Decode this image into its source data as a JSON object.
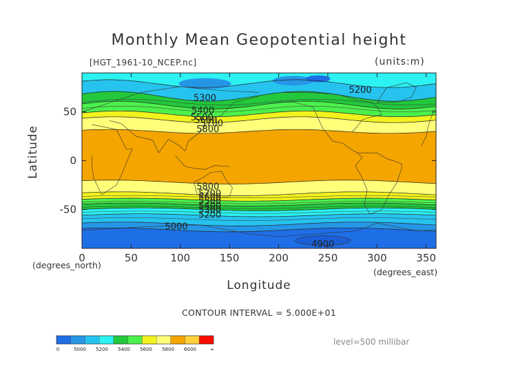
{
  "header": {
    "title": "Monthly Mean Geopotential height",
    "file_label": "[HGT_1961-10_NCEP.nc]",
    "units_label": "(units:m)"
  },
  "axes": {
    "ylabel": "Latitude",
    "xlabel": "Longitude",
    "y_units": "(degrees_north)",
    "x_units": "(degrees_east)"
  },
  "footer": {
    "contour_interval": "CONTOUR INTERVAL = 5.000E+01",
    "level": "level=500 millibar"
  },
  "colors": {
    "c1": "#1e6ee6",
    "c2": "#2596e6",
    "c3": "#26c3ef",
    "c4": "#2cf2f2",
    "c5": "#23c83c",
    "c6": "#4cf04c",
    "c7": "#f2f21e",
    "c8": "#ffff7a",
    "c9": "#f5a500",
    "c10": "#ffd23c",
    "c11": "#ff0a00"
  },
  "chart_data": {
    "type": "heatmap",
    "subtype": "filled contour map",
    "title": "Monthly Mean Geopotential height",
    "xlabel": "Longitude",
    "ylabel": "Latitude",
    "xlim": [
      0,
      360
    ],
    "ylim": [
      -90,
      90
    ],
    "x_ticks": [
      0,
      50,
      100,
      150,
      200,
      250,
      300,
      350
    ],
    "y_ticks": [
      -50,
      0,
      50
    ],
    "contour_interval": 50,
    "contour_labels": [
      {
        "text": "5300",
        "lon": 125,
        "lat": 65
      },
      {
        "text": "5400",
        "lon": 123,
        "lat": 52
      },
      {
        "text": "5500",
        "lon": 122,
        "lat": 45
      },
      {
        "text": "5600",
        "lon": 126,
        "lat": 42
      },
      {
        "text": "5700",
        "lon": 132,
        "lat": 39
      },
      {
        "text": "5800",
        "lon": 128,
        "lat": 33
      },
      {
        "text": "5800",
        "lon": 128,
        "lat": -26
      },
      {
        "text": "5700",
        "lon": 130,
        "lat": -33
      },
      {
        "text": "5600",
        "lon": 130,
        "lat": -37
      },
      {
        "text": "5500",
        "lon": 130,
        "lat": -41
      },
      {
        "text": "5400",
        "lon": 130,
        "lat": -46
      },
      {
        "text": "5300",
        "lon": 130,
        "lat": -50
      },
      {
        "text": "5200",
        "lon": 130,
        "lat": -55
      },
      {
        "text": "5000",
        "lon": 96,
        "lat": -67
      },
      {
        "text": "4900",
        "lon": 245,
        "lat": -85
      },
      {
        "text": "5200",
        "lon": 283,
        "lat": 73
      }
    ],
    "colorbar": {
      "ticks": [
        "0",
        "5000",
        "5200",
        "5400",
        "5600",
        "5800",
        "6000",
        "∞"
      ]
    }
  }
}
